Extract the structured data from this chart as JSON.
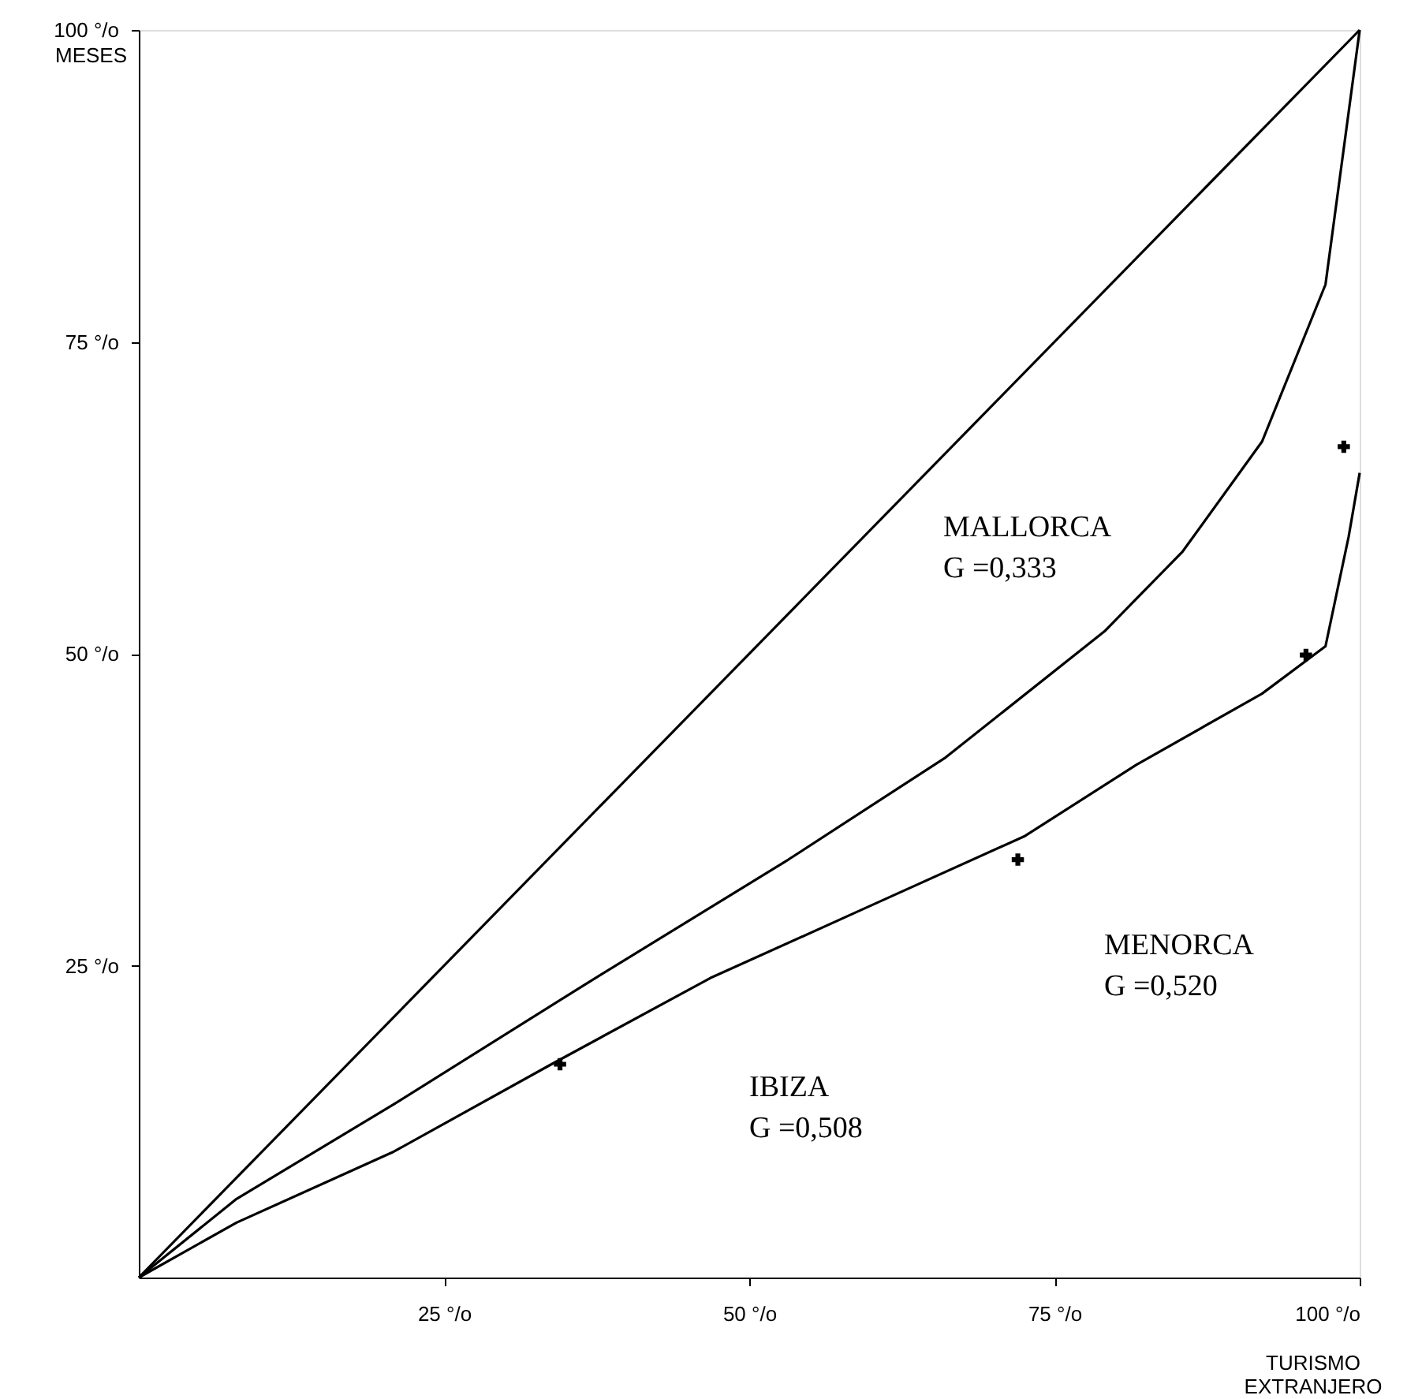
{
  "chart_data": {
    "type": "line",
    "ylabel": "MESES",
    "xlabel": "TURISMO EXTRANJERO",
    "xlim": [
      0,
      100
    ],
    "ylim": [
      0,
      100
    ],
    "xticks": [
      {
        "value": 25,
        "label": "25 °/o"
      },
      {
        "value": 50,
        "label": "50 °/o"
      },
      {
        "value": 75,
        "label": "75 °/o"
      },
      {
        "value": 100,
        "label": "100 °/o"
      }
    ],
    "yticks": [
      {
        "value": 25,
        "label": "25 °/o"
      },
      {
        "value": 50,
        "label": "50 °/o"
      },
      {
        "value": 75,
        "label": "75 °/o"
      },
      {
        "value": 100,
        "label": "100 °/o"
      }
    ],
    "grid": false,
    "line_style": "solid",
    "marker": "none",
    "series": [
      {
        "color": "#000000",
        "x": [
          0,
          100
        ],
        "values": [
          0,
          100
        ]
      },
      {
        "color": "#000000",
        "x": [
          0,
          8.0,
          20.9,
          36.4,
          53.2,
          66.1,
          79.1,
          85.5,
          92.0,
          97.2,
          100
        ],
        "values": [
          0,
          6.3,
          13.9,
          23.4,
          33.5,
          41.7,
          51.8,
          58.2,
          67.0,
          79.6,
          100
        ]
      },
      {
        "color": "#000000",
        "x": [
          0,
          8.0,
          20.9,
          33.8,
          46.8,
          59.7,
          72.6,
          81.7,
          92.0,
          97.2,
          99.1,
          100
        ],
        "values": [
          0,
          4.4,
          10.1,
          17.1,
          24.0,
          29.7,
          35.4,
          41.1,
          46.8,
          50.6,
          59.4,
          64.5
        ]
      },
      {
        "type": "scatter",
        "marker": "cross",
        "color": "#000000",
        "x": [
          34.5,
          72.0,
          95.6,
          98.7
        ],
        "values": [
          17.1,
          33.5,
          49.9,
          66.6
        ]
      }
    ],
    "annotations": [
      "MALLORCA\nG =0,333",
      "MENORCA\nG =0,520",
      "IBIZA\nG =0,508"
    ]
  }
}
